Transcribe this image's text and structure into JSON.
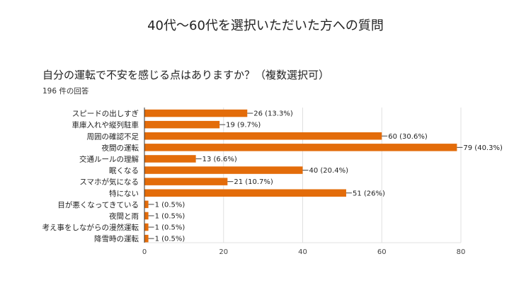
{
  "page": {
    "title": "40代〜60代を選択いただいた方への質問",
    "question": "自分の運転で不安を感じる点はありますか？（複数選択可）",
    "response_count": "196 件の回答"
  },
  "chart_data": {
    "type": "bar",
    "orientation": "horizontal",
    "title": "自分の運転で不安を感じる点はありますか？（複数選択可）",
    "categories": [
      "スピードの出しすぎ",
      "車庫入れや縦列駐車",
      "周囲の確認不足",
      "夜間の運転",
      "交通ルールの理解",
      "眠くなる",
      "スマホが気になる",
      "特にない",
      "目が悪くなってきている",
      "夜間と雨",
      "考え事をしながらの漫然運転",
      "降雪時の運転"
    ],
    "values": [
      26,
      19,
      60,
      79,
      13,
      40,
      21,
      51,
      1,
      1,
      1,
      1
    ],
    "value_labels": [
      "26 (13.3%)",
      "19 (9.7%)",
      "60 (30.6%)",
      "79 (40.3%)",
      "13 (6.6%)",
      "40 (20.4%)",
      "21 (10.7%)",
      "51 (26%)",
      "1 (0.5%)",
      "1 (0.5%)",
      "1 (0.5%)",
      "1 (0.5%)"
    ],
    "xlim": [
      0,
      80
    ],
    "xticks": [
      0,
      20,
      40,
      60,
      80
    ],
    "xlabel": "",
    "ylabel": "",
    "grid": true,
    "bar_color": "#e36c0a",
    "grid_color": "#e0e0e0",
    "axis_color": "#333333"
  }
}
